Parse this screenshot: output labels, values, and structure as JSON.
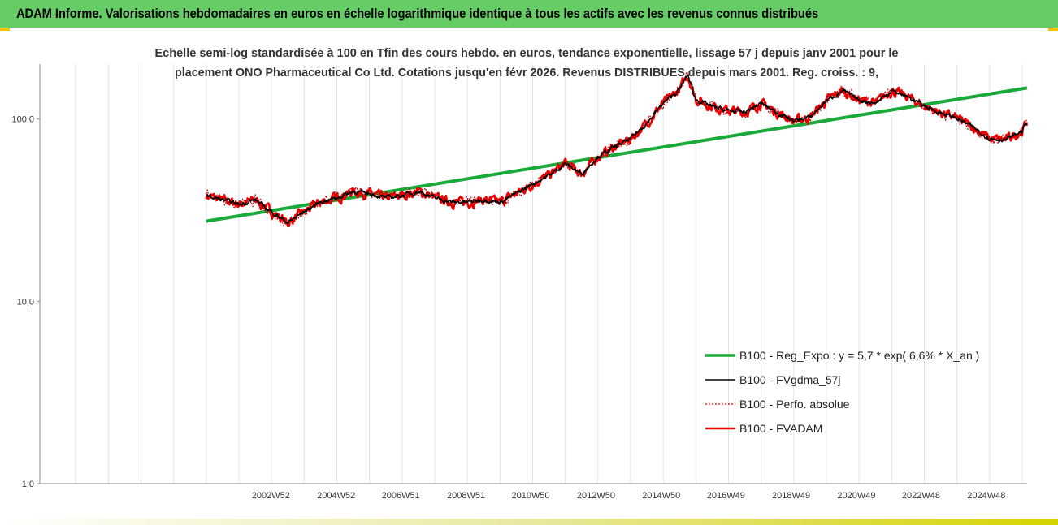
{
  "header": {
    "title": "ADAM Informe. Valorisations hebdomadaires en euros en échelle logarithmique identique à tous les actifs avec les revenus connus distribués"
  },
  "colors": {
    "header_bg": "#66cc66",
    "trend": "#1aaa3a",
    "fvgdma": "#000000",
    "perfo": "#cc0000",
    "fvadam": "#ee0000",
    "grid": "#e2e2ee",
    "axis": "#888888"
  },
  "chart_data": {
    "type": "line",
    "title_lines": [
      "Echelle semi-log standardisée à 100 en Tfin des cours hebdo. en euros, tendance exponentielle, lissage 57 j depuis janv 2001 pour le",
      "placement ONO Pharmaceutical Co Ltd. Cotations jusqu'en févr 2026. Revenus DISTRIBUES depuis mars 2001. Reg. croiss. : 9,"
    ],
    "y_scale": "log",
    "ylim": [
      1,
      200
    ],
    "xlim": [
      1995.9,
      2026.15
    ],
    "y_ticks": [
      1,
      10,
      100
    ],
    "y_tick_labels": [
      "1,0",
      "10,0",
      "100,0"
    ],
    "x_ticks": [
      2002.98,
      2004.98,
      2006.96,
      2008.96,
      2010.94,
      2012.94,
      2014.94,
      2016.92,
      2018.92,
      2020.92,
      2022.9,
      2024.9
    ],
    "x_tick_labels": [
      "2002W52",
      "2004W52",
      "2006W51",
      "2008W51",
      "2010W50",
      "2012W50",
      "2014W50",
      "2016W49",
      "2018W49",
      "2020W49",
      "2022W48",
      "2024W48"
    ],
    "legend_position": "bottom-right",
    "grid": "vertical",
    "series": [
      {
        "name": "B100 - Reg_Expo : y = 5,7 * exp( 6,6% *  X_an )",
        "style": "trend",
        "x": [
          2001.0,
          2026.15
        ],
        "values": [
          27.5,
          148
        ]
      },
      {
        "name": "B100 - FVgdma_57j",
        "style": "smooth",
        "x": [
          2001.0,
          2001.5,
          2002.0,
          2002.5,
          2003.0,
          2003.5,
          2004.0,
          2004.5,
          2005.0,
          2005.5,
          2006.0,
          2006.5,
          2007.0,
          2007.5,
          2008.0,
          2008.5,
          2009.0,
          2009.5,
          2010.0,
          2010.5,
          2011.0,
          2011.5,
          2012.0,
          2012.5,
          2013.0,
          2013.5,
          2014.0,
          2014.5,
          2015.0,
          2015.5,
          2015.75,
          2016.0,
          2016.5,
          2017.0,
          2017.5,
          2018.0,
          2018.5,
          2019.0,
          2019.5,
          2020.0,
          2020.5,
          2021.0,
          2021.5,
          2022.0,
          2022.5,
          2023.0,
          2023.5,
          2024.0,
          2024.5,
          2025.0,
          2025.5,
          2026.0,
          2026.15
        ],
        "values": [
          38,
          36,
          34,
          36,
          31,
          27,
          31,
          35,
          37,
          40,
          39,
          37,
          38,
          40,
          37,
          35,
          35,
          36,
          35,
          39,
          44,
          49,
          57,
          50,
          62,
          70,
          78,
          95,
          122,
          145,
          175,
          128,
          117,
          111,
          109,
          122,
          108,
          98,
          102,
          126,
          143,
          127,
          122,
          143,
          132,
          118,
          108,
          101,
          90,
          78,
          77,
          86,
          97
        ]
      },
      {
        "name": "B100 - Perfo. absolue",
        "style": "dotted",
        "x": [
          2001.0,
          2001.5,
          2002.0,
          2002.5,
          2003.0,
          2003.5,
          2004.0,
          2004.5,
          2005.0,
          2005.5,
          2006.0,
          2006.5,
          2007.0,
          2007.5,
          2008.0,
          2008.5,
          2009.0,
          2009.5,
          2010.0,
          2010.5,
          2011.0,
          2011.5,
          2012.0,
          2012.5,
          2013.0,
          2013.5,
          2014.0,
          2014.5,
          2015.0,
          2015.5,
          2015.75,
          2016.0,
          2016.5,
          2017.0,
          2017.5,
          2018.0,
          2018.5,
          2019.0,
          2019.5,
          2020.0,
          2020.5,
          2021.0,
          2021.5,
          2022.0,
          2022.5,
          2023.0,
          2023.5,
          2024.0,
          2024.5,
          2025.0,
          2025.5,
          2026.0,
          2026.15
        ],
        "values": [
          38,
          36,
          34,
          36,
          31,
          27,
          31,
          35,
          37,
          40,
          39,
          37,
          38,
          40,
          37,
          35,
          35,
          36,
          35,
          39,
          44,
          49,
          57,
          50,
          62,
          70,
          78,
          95,
          122,
          145,
          175,
          128,
          117,
          111,
          109,
          122,
          108,
          98,
          102,
          126,
          143,
          127,
          122,
          143,
          132,
          118,
          108,
          101,
          90,
          78,
          77,
          86,
          97
        ]
      },
      {
        "name": "B100 - FVADAM",
        "style": "main",
        "x": [
          2001.0,
          2001.5,
          2002.0,
          2002.5,
          2003.0,
          2003.5,
          2004.0,
          2004.5,
          2005.0,
          2005.5,
          2006.0,
          2006.5,
          2007.0,
          2007.5,
          2008.0,
          2008.5,
          2009.0,
          2009.5,
          2010.0,
          2010.5,
          2011.0,
          2011.5,
          2012.0,
          2012.5,
          2013.0,
          2013.5,
          2014.0,
          2014.5,
          2015.0,
          2015.5,
          2015.75,
          2016.0,
          2016.5,
          2017.0,
          2017.5,
          2018.0,
          2018.5,
          2019.0,
          2019.5,
          2020.0,
          2020.5,
          2021.0,
          2021.5,
          2022.0,
          2022.5,
          2023.0,
          2023.5,
          2024.0,
          2024.5,
          2025.0,
          2025.5,
          2026.0,
          2026.15
        ],
        "values": [
          38,
          36,
          34,
          36,
          31,
          27,
          31,
          35,
          37,
          40,
          39,
          37,
          38,
          40,
          37,
          35,
          35,
          36,
          35,
          39,
          44,
          49,
          57,
          50,
          62,
          70,
          78,
          95,
          122,
          145,
          175,
          128,
          117,
          111,
          109,
          122,
          108,
          98,
          102,
          126,
          143,
          127,
          122,
          143,
          132,
          118,
          108,
          101,
          90,
          78,
          77,
          86,
          97
        ]
      }
    ]
  }
}
